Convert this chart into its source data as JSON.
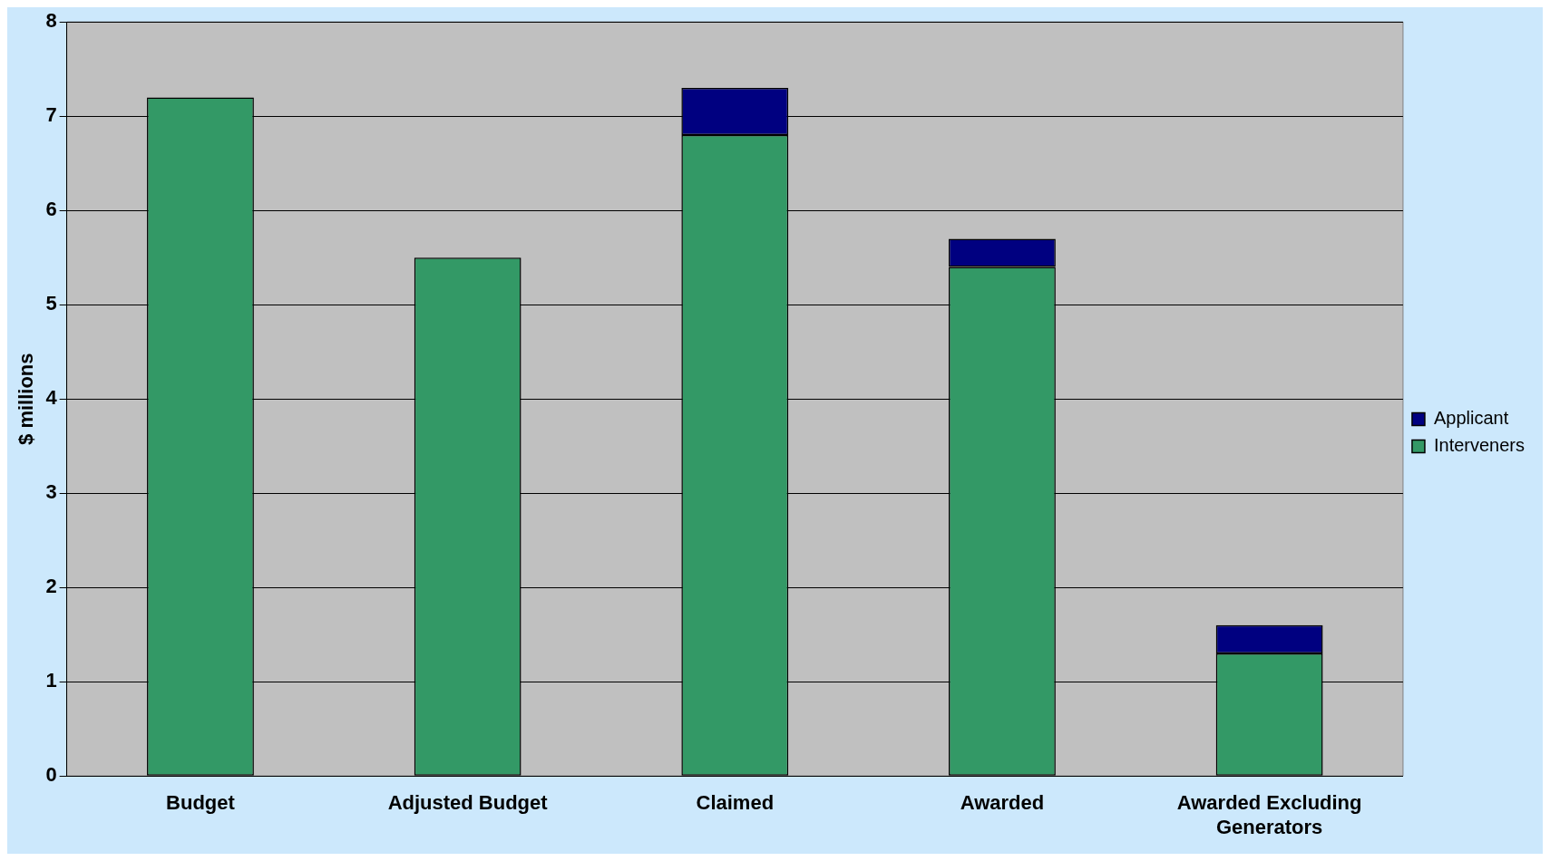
{
  "chart_data": {
    "type": "bar",
    "stacked": true,
    "ylabel": "$ millions",
    "categories": [
      "Budget",
      "Adjusted Budget",
      "Claimed",
      "Awarded",
      "Awarded Excluding Generators"
    ],
    "series": [
      {
        "name": "Interveners",
        "color": "#339966",
        "values": [
          7.2,
          5.5,
          6.8,
          5.4,
          1.3
        ]
      },
      {
        "name": "Applicant",
        "color": "#000080",
        "values": [
          null,
          null,
          0.5,
          0.3,
          0.3
        ]
      }
    ],
    "ylim": [
      0,
      8
    ],
    "yticks": [
      0,
      1,
      2,
      3,
      4,
      5,
      6,
      7,
      8
    ],
    "grid": "y",
    "legend": "right"
  }
}
